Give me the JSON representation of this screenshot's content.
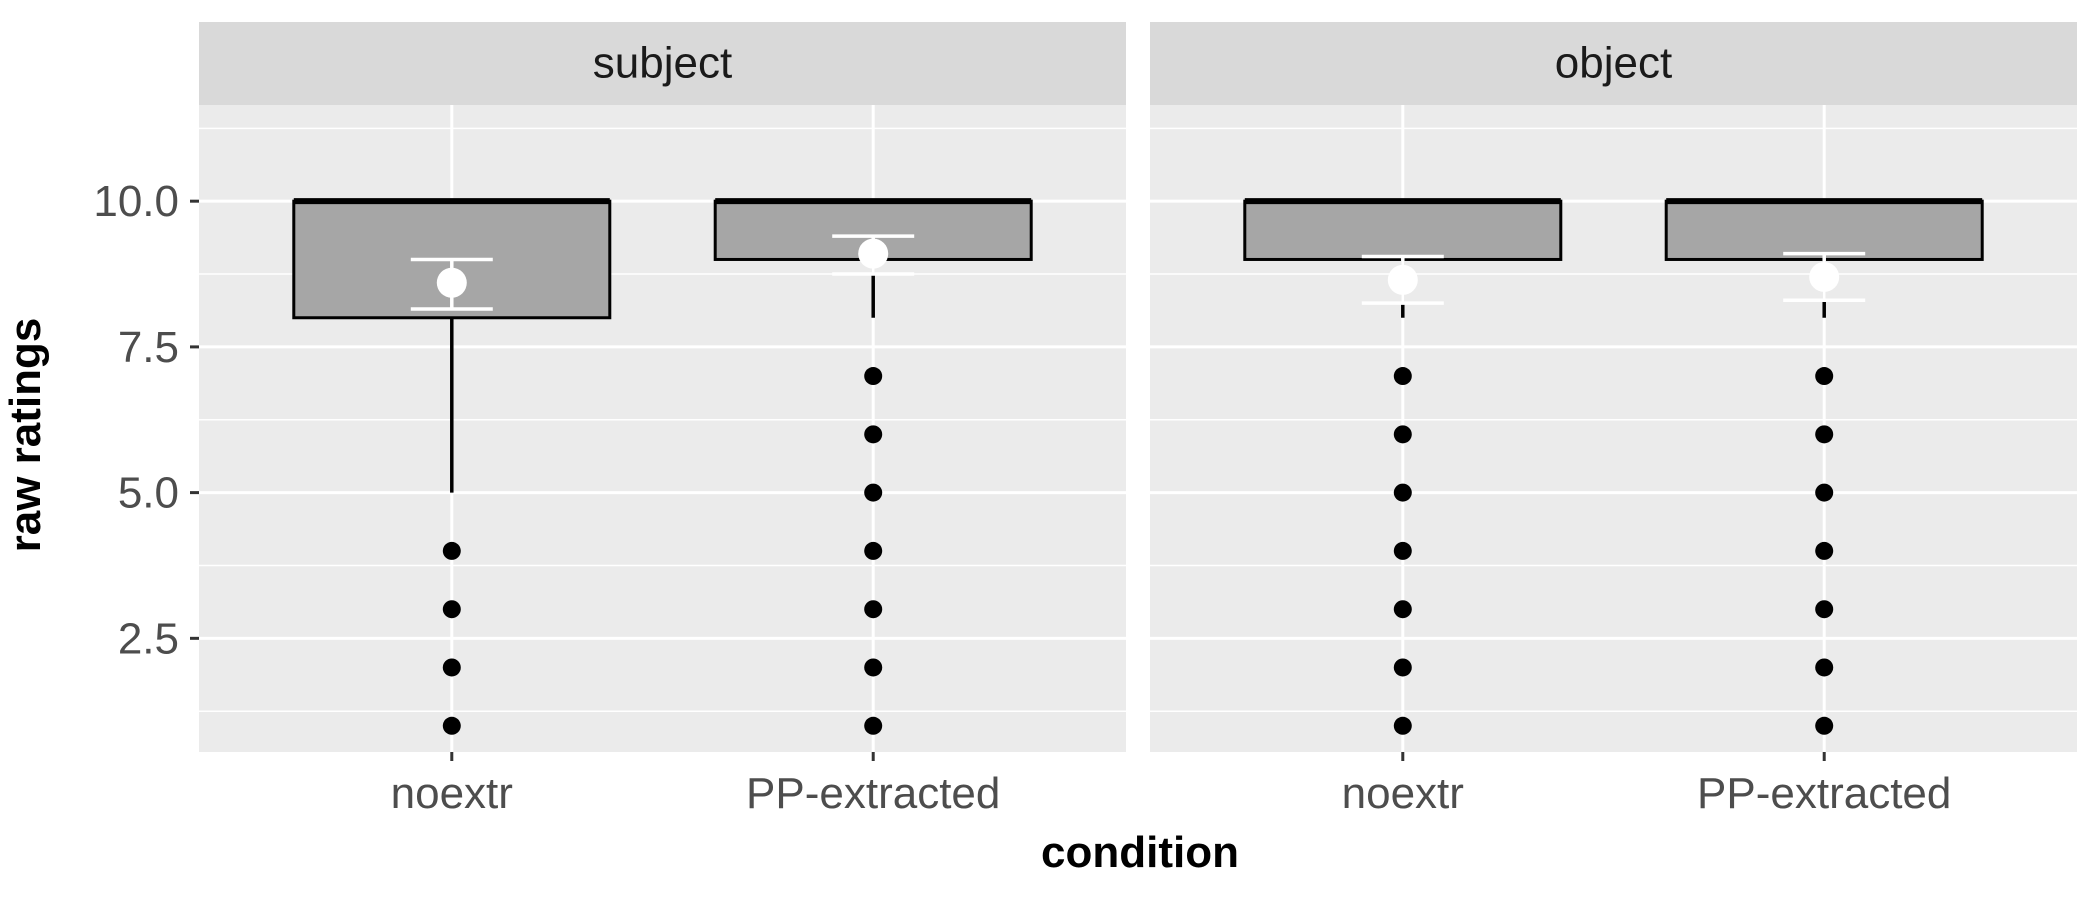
{
  "chart_data": {
    "type": "box",
    "xlabel": "condition",
    "ylabel": "raw ratings",
    "ylim": [
      0.55,
      11.65
    ],
    "y_ticks": [
      2.5,
      5.0,
      7.5,
      10.0
    ],
    "y_tick_labels": [
      "2.5",
      "5.0",
      "7.5",
      "10.0"
    ],
    "categories": [
      "noextr",
      "PP-extracted"
    ],
    "grid": true,
    "panels": [
      {
        "name": "subject",
        "boxes": [
          {
            "category": "noextr",
            "q1": 8,
            "median": 10,
            "q3": 10,
            "whisker_low": 5,
            "whisker_high": 10,
            "outliers": [
              4,
              3,
              2,
              1
            ],
            "mean": 8.6,
            "mean_ci": [
              8.15,
              9.0
            ]
          },
          {
            "category": "PP-extracted",
            "q1": 9,
            "median": 10,
            "q3": 10,
            "whisker_low": 8,
            "whisker_high": 10,
            "outliers": [
              7,
              6,
              5,
              4,
              3,
              2,
              1
            ],
            "mean": 9.1,
            "mean_ci": [
              8.75,
              9.4
            ]
          }
        ]
      },
      {
        "name": "object",
        "boxes": [
          {
            "category": "noextr",
            "q1": 9,
            "median": 10,
            "q3": 10,
            "whisker_low": 8,
            "whisker_high": 10,
            "outliers": [
              7,
              6,
              5,
              4,
              3,
              2,
              1
            ],
            "mean": 8.65,
            "mean_ci": [
              8.25,
              9.05
            ]
          },
          {
            "category": "PP-extracted",
            "q1": 9,
            "median": 10,
            "q3": 10,
            "whisker_low": 8,
            "whisker_high": 10,
            "outliers": [
              7,
              6,
              5,
              4,
              3,
              2,
              1
            ],
            "mean": 8.7,
            "mean_ci": [
              8.3,
              9.1
            ]
          }
        ]
      }
    ],
    "colors": {
      "panel_background": "#ebebeb",
      "strip_background": "#d9d9d9",
      "grid": "#ffffff",
      "box_fill": "#a6a6a6",
      "box_stroke": "#000000",
      "outlier": "#000000",
      "mean": "#ffffff",
      "text": "#4d4d4d"
    }
  }
}
